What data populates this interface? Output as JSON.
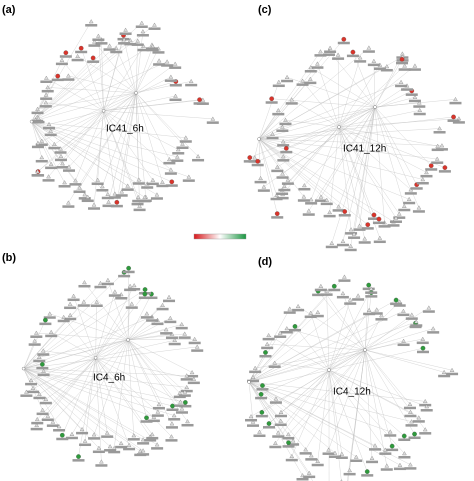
{
  "panels": [
    {
      "label": "(a)",
      "title": "IC41_6h"
    },
    {
      "label": "(c)",
      "title": "IC41_12h"
    },
    {
      "label": "(b)",
      "title": "IC4_6h"
    },
    {
      "label": "(d)",
      "title": "IC4_12h"
    }
  ]
}
